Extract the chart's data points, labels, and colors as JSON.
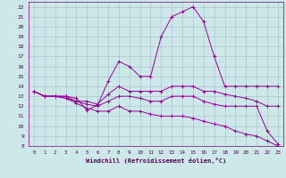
{
  "title": "",
  "xlabel": "Windchill (Refroidissement éolien,°C)",
  "xlim": [
    -0.5,
    23.5
  ],
  "ylim": [
    8,
    22.5
  ],
  "xticks": [
    0,
    1,
    2,
    3,
    4,
    5,
    6,
    7,
    8,
    9,
    10,
    11,
    12,
    13,
    14,
    15,
    16,
    17,
    18,
    19,
    20,
    21,
    22,
    23
  ],
  "yticks": [
    8,
    9,
    10,
    11,
    12,
    13,
    14,
    15,
    16,
    17,
    18,
    19,
    20,
    21,
    22
  ],
  "bg_color": "#cce8e8",
  "line_color": "#990099",
  "grid_color": "#aabbcc",
  "lines": [
    {
      "x": [
        0,
        1,
        2,
        3,
        4,
        5,
        6,
        7,
        8,
        9,
        10,
        11,
        12,
        13,
        14,
        15,
        16,
        17,
        18,
        19,
        20,
        21,
        22,
        23
      ],
      "y": [
        13.5,
        13.0,
        13.0,
        13.0,
        12.8,
        11.6,
        12.1,
        14.5,
        16.5,
        16.0,
        15.0,
        15.0,
        19.0,
        21.0,
        21.5,
        22.0,
        20.5,
        17.0,
        14.0,
        14.0,
        14.0,
        14.0,
        14.0,
        14.0
      ]
    },
    {
      "x": [
        0,
        1,
        2,
        3,
        4,
        5,
        6,
        7,
        8,
        9,
        10,
        11,
        12,
        13,
        14,
        15,
        16,
        17,
        18,
        19,
        20,
        21,
        22,
        23
      ],
      "y": [
        13.5,
        13.0,
        13.0,
        13.0,
        12.5,
        12.5,
        12.2,
        13.2,
        14.0,
        13.5,
        13.5,
        13.5,
        13.5,
        14.0,
        14.0,
        14.0,
        13.5,
        13.5,
        13.2,
        13.0,
        12.8,
        12.5,
        12.0,
        12.0
      ]
    },
    {
      "x": [
        0,
        1,
        2,
        3,
        4,
        5,
        6,
        7,
        8,
        9,
        10,
        11,
        12,
        13,
        14,
        15,
        16,
        17,
        18,
        19,
        20,
        21,
        22,
        23
      ],
      "y": [
        13.5,
        13.0,
        13.0,
        12.8,
        12.5,
        12.2,
        12.0,
        12.5,
        13.0,
        13.0,
        12.8,
        12.5,
        12.5,
        13.0,
        13.0,
        13.0,
        12.5,
        12.2,
        12.0,
        12.0,
        12.0,
        12.0,
        9.5,
        8.2
      ]
    },
    {
      "x": [
        0,
        1,
        2,
        3,
        4,
        5,
        6,
        7,
        8,
        9,
        10,
        11,
        12,
        13,
        14,
        15,
        16,
        17,
        18,
        19,
        20,
        21,
        22,
        23
      ],
      "y": [
        13.5,
        13.0,
        13.0,
        12.8,
        12.3,
        11.8,
        11.5,
        11.5,
        12.0,
        11.5,
        11.5,
        11.2,
        11.0,
        11.0,
        11.0,
        10.8,
        10.5,
        10.2,
        10.0,
        9.5,
        9.2,
        9.0,
        8.5,
        8.0
      ]
    }
  ]
}
